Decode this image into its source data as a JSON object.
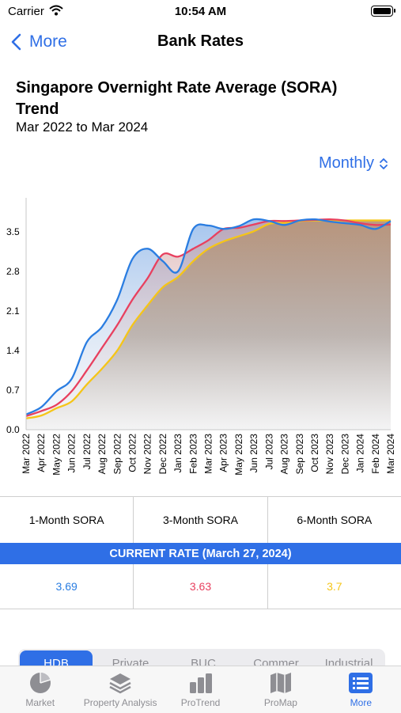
{
  "status": {
    "carrier": "Carrier",
    "time": "10:54 AM"
  },
  "nav": {
    "back_label": "More",
    "title": "Bank Rates"
  },
  "header": {
    "title": "Singapore Overnight Rate Average (SORA) Trend",
    "subtitle": "Mar 2022 to Mar 2024",
    "period_label": "Monthly"
  },
  "colors": {
    "accent": "#2f6fe6",
    "one_month": "#2a7de1",
    "three_month": "#e8405f",
    "six_month": "#f5c518"
  },
  "chart_data": {
    "type": "area",
    "categories": [
      "Mar 2022",
      "Apr 2022",
      "May 2022",
      "Jun 2022",
      "Jul 2022",
      "Aug 2022",
      "Sep 2022",
      "Oct 2022",
      "Nov 2022",
      "Dec 2022",
      "Jan 2023",
      "Feb 2023",
      "Mar 2023",
      "Apr 2023",
      "May 2023",
      "Jun 2023",
      "Jul 2023",
      "Aug 2023",
      "Sep 2023",
      "Oct 2023",
      "Nov 2023",
      "Dec 2023",
      "Jan 2024",
      "Feb 2024",
      "Mar 2024"
    ],
    "yticks": [
      "0.0",
      "0.7",
      "1.4",
      "2.1",
      "2.8",
      "3.5"
    ],
    "ylim": [
      0,
      4.1
    ],
    "grid": false,
    "series": [
      {
        "name": "1-Month SORA",
        "color": "#2a7de1",
        "values": [
          0.27,
          0.4,
          0.68,
          0.9,
          1.55,
          1.82,
          2.3,
          3.02,
          3.2,
          2.98,
          2.8,
          3.55,
          3.61,
          3.55,
          3.6,
          3.72,
          3.69,
          3.62,
          3.7,
          3.72,
          3.68,
          3.65,
          3.62,
          3.55,
          3.69
        ]
      },
      {
        "name": "3-Month SORA",
        "color": "#e8405f",
        "values": [
          0.24,
          0.33,
          0.44,
          0.68,
          1.05,
          1.45,
          1.85,
          2.3,
          2.68,
          3.1,
          3.06,
          3.2,
          3.35,
          3.55,
          3.57,
          3.63,
          3.69,
          3.69,
          3.7,
          3.71,
          3.72,
          3.7,
          3.65,
          3.62,
          3.63
        ]
      },
      {
        "name": "6-Month SORA",
        "color": "#f5c518",
        "values": [
          0.2,
          0.25,
          0.38,
          0.5,
          0.8,
          1.08,
          1.4,
          1.85,
          2.2,
          2.52,
          2.7,
          2.98,
          3.2,
          3.33,
          3.42,
          3.51,
          3.64,
          3.66,
          3.69,
          3.7,
          3.7,
          3.7,
          3.7,
          3.7,
          3.7
        ]
      }
    ]
  },
  "rates": {
    "labels": [
      "1-Month SORA",
      "3-Month SORA",
      "6-Month SORA"
    ],
    "banner": "CURRENT RATE (March 27, 2024)",
    "values": [
      "3.69",
      "3.63",
      "3.7"
    ]
  },
  "segments": [
    "HDB",
    "Private",
    "BUC",
    "Commer",
    "Industrial"
  ],
  "tabs": [
    {
      "label": "Market",
      "icon": "pie-chart-icon"
    },
    {
      "label": "Property Analysis",
      "icon": "layers-icon"
    },
    {
      "label": "ProTrend",
      "icon": "bar-chart-icon"
    },
    {
      "label": "ProMap",
      "icon": "map-icon"
    },
    {
      "label": "More",
      "icon": "list-icon"
    }
  ]
}
